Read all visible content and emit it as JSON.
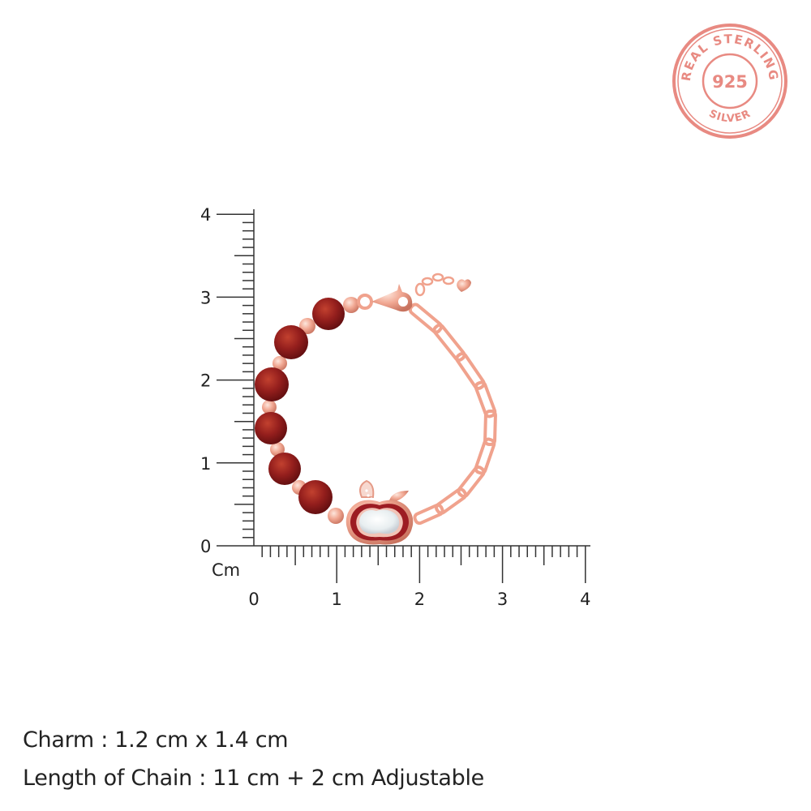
{
  "badge": {
    "top_text": "REAL STERLING",
    "center_text": "925",
    "bottom_text": "SILVER",
    "color": "#e88a82"
  },
  "ruler": {
    "unit_label": "Cm",
    "x_ticks": [
      "0",
      "1",
      "2",
      "3",
      "4"
    ],
    "y_ticks": [
      "0",
      "1",
      "2",
      "3",
      "4"
    ],
    "range_cm": [
      0,
      4
    ],
    "minor_step_cm": 0.1
  },
  "product": {
    "bead_color": "#8e1d1c",
    "metal_color": "#f2a48f",
    "charm_color": "#f3f0ee"
  },
  "specs": [
    {
      "text": "Charm : 1.2 cm x 1.4 cm"
    },
    {
      "text": "Length of Chain : 11 cm + 2 cm Adjustable"
    }
  ]
}
